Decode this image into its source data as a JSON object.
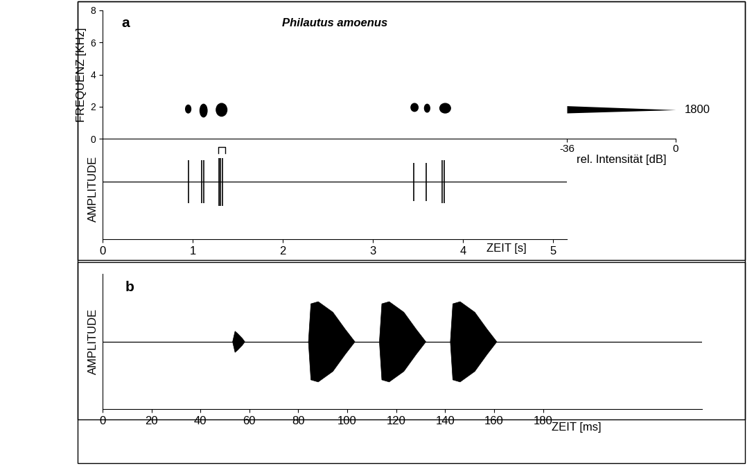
{
  "chart_data": [
    {
      "type": "spectrogram",
      "panel": "a",
      "title": "Philautus amoenus",
      "ylabel": "FREQUENZ [KHz]",
      "xlim": [
        0,
        5.15
      ],
      "ylim": [
        0,
        8
      ],
      "yticks": [
        0,
        2,
        4,
        6,
        8
      ],
      "tick_labels": "y",
      "color": "#000000",
      "notes": [
        {
          "t": 0.95,
          "f": 1.85,
          "duration": 0.06,
          "bandwidth": 0.5
        },
        {
          "t": 1.12,
          "f": 1.75,
          "duration": 0.08,
          "bandwidth": 0.8
        },
        {
          "t": 1.32,
          "f": 1.8,
          "duration": 0.12,
          "bandwidth": 0.8
        },
        {
          "t": 3.46,
          "f": 1.95,
          "duration": 0.08,
          "bandwidth": 0.5
        },
        {
          "t": 3.6,
          "f": 1.9,
          "duration": 0.06,
          "bandwidth": 0.5
        },
        {
          "t": 3.8,
          "f": 1.9,
          "duration": 0.12,
          "bandwidth": 0.6
        }
      ]
    },
    {
      "type": "spectrum",
      "xlabel": "rel. Intensität [dB]",
      "xlim": [
        -36,
        0
      ],
      "xticks": [
        -36,
        0
      ],
      "ylim": [
        0,
        8
      ],
      "tick_labels": "x",
      "color": "#000000",
      "peak": {
        "value": 1.8,
        "label": "1800"
      },
      "intensity_db": [
        -36,
        0
      ],
      "band_low_khz": [
        1.6,
        1.8
      ],
      "band_high_khz": [
        2.05,
        1.8
      ]
    },
    {
      "type": "oscillogram",
      "ylabel": "AMPLITUDE",
      "xlabel": "ZEIT [s]",
      "xlim": [
        0,
        5.15
      ],
      "xticks": [
        0,
        1,
        2,
        3,
        4,
        5
      ],
      "ylim": [
        -1.2,
        0.9
      ],
      "tick_labels": "x",
      "color": "#000000",
      "baseline": 0,
      "bracket": [
        1.28,
        1.36
      ],
      "spikes": [
        {
          "t": 0.95,
          "amplitude": 0.45
        },
        {
          "t": 1.1,
          "amplitude": 0.45
        },
        {
          "t": 1.12,
          "amplitude": 0.45
        },
        {
          "t": 1.29,
          "amplitude": 0.5
        },
        {
          "t": 1.31,
          "amplitude": 0.5
        },
        {
          "t": 1.33,
          "amplitude": 0.5
        },
        {
          "t": 3.45,
          "amplitude": 0.4
        },
        {
          "t": 3.59,
          "amplitude": 0.4
        },
        {
          "t": 3.77,
          "amplitude": 0.45
        },
        {
          "t": 3.79,
          "amplitude": 0.45
        }
      ]
    },
    {
      "type": "oscillogram",
      "panel": "b",
      "ylabel": "AMPLITUDE",
      "xlabel": "ZEIT [ms]",
      "xlim": [
        0,
        245
      ],
      "xticks": [
        0,
        20,
        40,
        60,
        80,
        100,
        120,
        140,
        160,
        180
      ],
      "ylim": [
        -1.6,
        1.6
      ],
      "tick_labels": "x",
      "color": "#000000",
      "baseline": 0,
      "pulses": [
        {
          "t": [
            53,
            54,
            55,
            57,
            58
          ],
          "a": [
            0,
            0.25,
            0.2,
            0.08,
            0
          ]
        },
        {
          "t": [
            84,
            85,
            88,
            94,
            99,
            103
          ],
          "a": [
            0,
            0.9,
            0.95,
            0.7,
            0.3,
            0
          ]
        },
        {
          "t": [
            113,
            114,
            117,
            123,
            128,
            132
          ],
          "a": [
            0,
            0.9,
            0.95,
            0.7,
            0.3,
            0
          ]
        },
        {
          "t": [
            142,
            143,
            146,
            152,
            157,
            161
          ],
          "a": [
            0,
            0.9,
            0.95,
            0.7,
            0.3,
            0
          ]
        }
      ]
    }
  ]
}
